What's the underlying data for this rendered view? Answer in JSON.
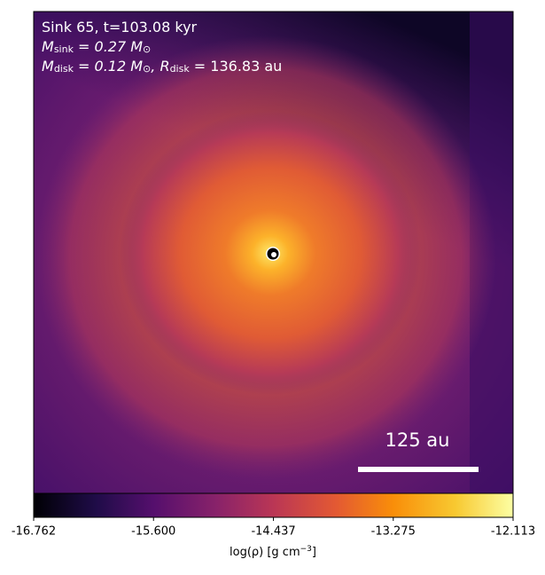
{
  "chart_data": {
    "type": "heatmap",
    "annotation_lines": [
      [
        "Sink 65, t=103.08 kyr"
      ],
      [
        "M",
        "sink",
        " = 0.27 M",
        "⊙"
      ],
      [
        "M",
        "disk",
        " = 0.12 M",
        "⊙",
        ", R",
        "disk",
        " = 136.83 au"
      ]
    ],
    "scale_bar_label": "125 au",
    "colorbar": {
      "xlim": [
        -16.762,
        -12.113
      ],
      "xticks": [
        -16.762,
        {
          "value": -15.6,
          "label": "-15.600"
        },
        -14.437,
        -13.275,
        -12.113
      ],
      "label": [
        "log(ρ) [g cm",
        "−3",
        "]"
      ]
    }
  }
}
